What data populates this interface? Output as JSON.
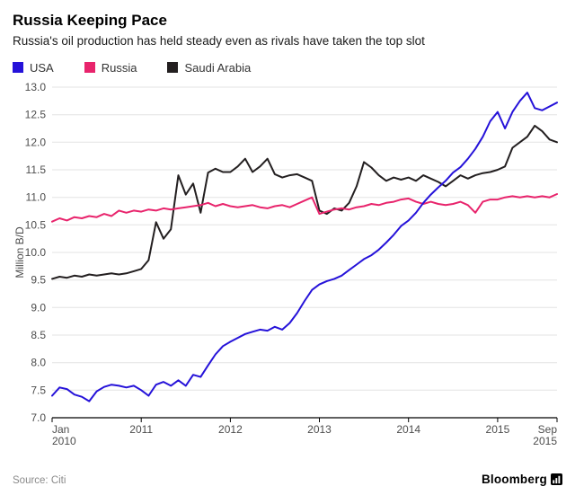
{
  "header": {
    "title": "Russia Keeping Pace",
    "subtitle": "Russia's oil production has held steady even as rivals have taken the top slot"
  },
  "legend": [
    {
      "label": "USA",
      "color": "#2512d9"
    },
    {
      "label": "Russia",
      "color": "#e8246c"
    },
    {
      "label": "Saudi Arabia",
      "color": "#231f20"
    }
  ],
  "chart_data": {
    "type": "line",
    "title": "Russia Keeping Pace",
    "subtitle": "Russia's oil production has held steady even as rivals have taken the top slot",
    "xlabel": "",
    "ylabel": "Million B/D",
    "ylim": [
      7.0,
      13.0
    ],
    "x_unit": "month",
    "x_range": [
      "Jan 2010",
      "Sep 2015"
    ],
    "grid": "horizontal",
    "legend_position": "top-left",
    "y_ticks": [
      "7.0",
      "7.5",
      "8.0",
      "8.5",
      "9.0",
      "9.5",
      "10.0",
      "10.5",
      "11.0",
      "11.5",
      "12.0",
      "12.5",
      "13.0"
    ],
    "x_ticks": [
      {
        "i": 0,
        "lines": [
          "Jan",
          "2010"
        ],
        "anchor": "start"
      },
      {
        "i": 12,
        "lines": [
          "2011"
        ],
        "anchor": "middle"
      },
      {
        "i": 24,
        "lines": [
          "2012"
        ],
        "anchor": "middle"
      },
      {
        "i": 36,
        "lines": [
          "2013"
        ],
        "anchor": "middle"
      },
      {
        "i": 48,
        "lines": [
          "2014"
        ],
        "anchor": "middle"
      },
      {
        "i": 60,
        "lines": [
          "2015"
        ],
        "anchor": "middle"
      },
      {
        "i": 68,
        "lines": [
          "Sep",
          "2015"
        ],
        "anchor": "end"
      }
    ],
    "series": [
      {
        "name": "USA",
        "color": "#2512d9",
        "values": [
          7.4,
          7.55,
          7.52,
          7.42,
          7.38,
          7.3,
          7.48,
          7.56,
          7.6,
          7.58,
          7.55,
          7.58,
          7.5,
          7.4,
          7.6,
          7.65,
          7.58,
          7.68,
          7.58,
          7.78,
          7.74,
          7.95,
          8.15,
          8.3,
          8.38,
          8.45,
          8.52,
          8.56,
          8.6,
          8.58,
          8.65,
          8.6,
          8.72,
          8.9,
          9.12,
          9.32,
          9.42,
          9.48,
          9.52,
          9.58,
          9.68,
          9.78,
          9.88,
          9.95,
          10.05,
          10.18,
          10.32,
          10.48,
          10.58,
          10.72,
          10.9,
          11.05,
          11.18,
          11.3,
          11.45,
          11.55,
          11.7,
          11.88,
          12.1,
          12.38,
          12.55,
          12.25,
          12.55,
          12.75,
          12.9,
          12.62,
          12.58,
          12.65,
          12.72
        ]
      },
      {
        "name": "Russia",
        "color": "#e8246c",
        "values": [
          10.56,
          10.62,
          10.58,
          10.64,
          10.62,
          10.66,
          10.64,
          10.7,
          10.66,
          10.76,
          10.72,
          10.76,
          10.74,
          10.78,
          10.76,
          10.8,
          10.78,
          10.8,
          10.82,
          10.84,
          10.86,
          10.9,
          10.84,
          10.88,
          10.84,
          10.82,
          10.84,
          10.86,
          10.82,
          10.8,
          10.84,
          10.86,
          10.82,
          10.88,
          10.94,
          11.0,
          10.7,
          10.74,
          10.78,
          10.8,
          10.78,
          10.82,
          10.84,
          10.88,
          10.86,
          10.9,
          10.92,
          10.96,
          10.98,
          10.92,
          10.88,
          10.92,
          10.88,
          10.86,
          10.88,
          10.92,
          10.86,
          10.72,
          10.92,
          10.96,
          10.96,
          11.0,
          11.02,
          11.0,
          11.02,
          11.0,
          11.02,
          11.0,
          11.06
        ]
      },
      {
        "name": "Saudi Arabia",
        "color": "#231f20",
        "values": [
          9.52,
          9.56,
          9.54,
          9.58,
          9.56,
          9.6,
          9.58,
          9.6,
          9.62,
          9.6,
          9.62,
          9.66,
          9.7,
          9.86,
          10.55,
          10.25,
          10.42,
          11.4,
          11.05,
          11.25,
          10.72,
          11.45,
          11.52,
          11.46,
          11.46,
          11.56,
          11.7,
          11.46,
          11.56,
          11.7,
          11.42,
          11.36,
          11.4,
          11.42,
          11.36,
          11.3,
          10.76,
          10.7,
          10.8,
          10.76,
          10.9,
          11.2,
          11.64,
          11.54,
          11.4,
          11.3,
          11.36,
          11.32,
          11.36,
          11.3,
          11.4,
          11.34,
          11.28,
          11.2,
          11.3,
          11.4,
          11.34,
          11.4,
          11.44,
          11.46,
          11.5,
          11.56,
          11.9,
          12.0,
          12.1,
          12.3,
          12.2,
          12.05,
          12.0
        ]
      }
    ]
  },
  "footer": {
    "source": "Source: Citi",
    "brand": "Bloomberg"
  }
}
